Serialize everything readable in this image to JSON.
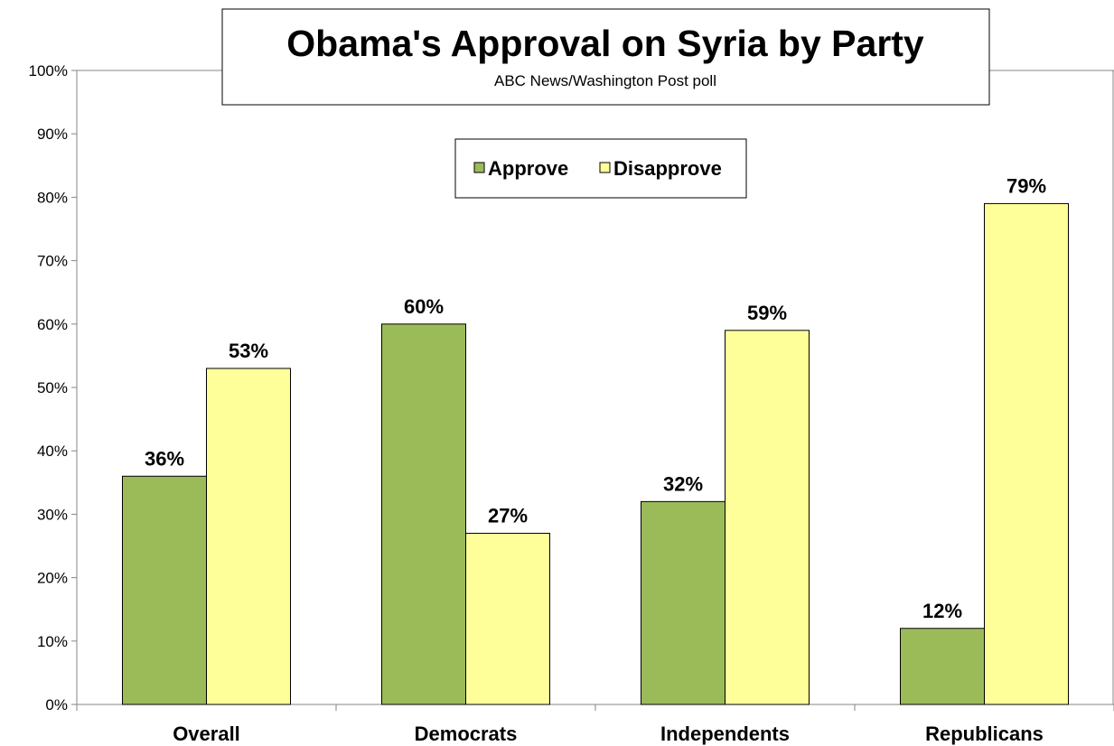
{
  "chart_data": {
    "type": "bar",
    "title": "Obama's Approval on Syria by Party",
    "subtitle": "ABC News/Washington Post poll",
    "categories": [
      "Overall",
      "Democrats",
      "Independents",
      "Republicans"
    ],
    "series": [
      {
        "name": "Approve",
        "color": "#9bbb59",
        "values": [
          36,
          60,
          32,
          12
        ]
      },
      {
        "name": "Disapprove",
        "color": "#ffff99",
        "values": [
          53,
          27,
          59,
          79
        ]
      }
    ],
    "data_labels": [
      [
        "36%",
        "60%",
        "32%",
        "12%"
      ],
      [
        "53%",
        "27%",
        "59%",
        "79%"
      ]
    ],
    "ylim": [
      0,
      100
    ],
    "yticks": [
      0,
      10,
      20,
      30,
      40,
      50,
      60,
      70,
      80,
      90,
      100
    ],
    "ytick_labels": [
      "0%",
      "10%",
      "20%",
      "30%",
      "40%",
      "50%",
      "60%",
      "70%",
      "80%",
      "90%",
      "100%"
    ],
    "xlabel": "",
    "ylabel": "",
    "grid": false,
    "legend": "top-center"
  }
}
